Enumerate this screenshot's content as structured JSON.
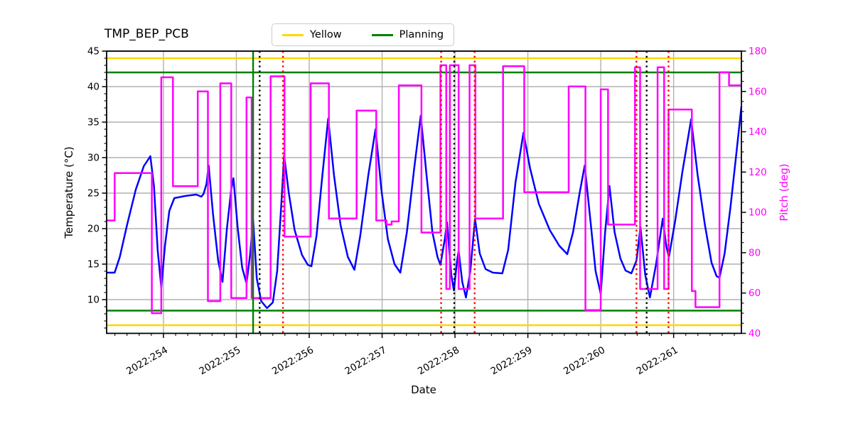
{
  "title": "TMP_BEP_PCB",
  "legend": [
    {
      "label": "Yellow",
      "color": "#ffd700"
    },
    {
      "label": "Planning",
      "color": "#008000"
    }
  ],
  "colors": {
    "temperature_line": "#0000ff",
    "pitch_line": "#ff00ff",
    "grid": "#b0b0b0",
    "spine": "#000000",
    "yellow_limit": "#ffd700",
    "planning_limit": "#008000",
    "right_axis_text": "#ff00ff"
  },
  "chart_data": {
    "type": "line",
    "title": "TMP_BEP_PCB",
    "x_axis": {
      "label": "Date",
      "lim": [
        253.22,
        261.93
      ],
      "major_ticks": [
        254,
        255,
        256,
        257,
        258,
        259,
        260,
        261
      ],
      "tick_labels": [
        "2022:254",
        "2022:255",
        "2022:256",
        "2022:257",
        "2022:258",
        "2022:259",
        "2022:260",
        "2022:261"
      ],
      "minor_divisions_per_day": 6
    },
    "y_left": {
      "label": "Temperature (°C)",
      "lim": [
        5.25,
        45
      ],
      "ticks": [
        10,
        15,
        20,
        25,
        30,
        35,
        40,
        45
      ],
      "minor_step": 1,
      "grid": true
    },
    "y_right": {
      "label": "Pitch (deg)",
      "lim": [
        40,
        180
      ],
      "ticks": [
        40,
        60,
        80,
        100,
        120,
        140,
        160,
        180
      ],
      "minor_step": 5,
      "color": "#ff00ff"
    },
    "limit_lines": [
      {
        "name": "Yellow",
        "color": "#ffd700",
        "axis": "left",
        "values": [
          44,
          6.4
        ]
      },
      {
        "name": "Planning",
        "color": "#008000",
        "axis": "left",
        "values": [
          42,
          8.45
        ]
      }
    ],
    "event_lines": [
      {
        "day": 255.23,
        "color": "#008000",
        "style": "solid"
      },
      {
        "day": 255.32,
        "color": "#000000",
        "style": "dotted"
      },
      {
        "day": 255.64,
        "color": "#ff0000",
        "style": "dotted"
      },
      {
        "day": 257.81,
        "color": "#ff0000",
        "style": "dotted"
      },
      {
        "day": 257.99,
        "color": "#000000",
        "style": "dotted"
      },
      {
        "day": 258.27,
        "color": "#ff0000",
        "style": "dotted"
      },
      {
        "day": 260.49,
        "color": "#ff0000",
        "style": "dotted"
      },
      {
        "day": 260.63,
        "color": "#000000",
        "style": "dotted"
      },
      {
        "day": 260.93,
        "color": "#ff0000",
        "style": "dotted"
      }
    ],
    "series": [
      {
        "name": "Temperature",
        "axis": "left",
        "draw": "line",
        "color": "#0000ff",
        "points": [
          [
            253.22,
            13.8
          ],
          [
            253.33,
            13.8
          ],
          [
            253.4,
            16.0
          ],
          [
            253.5,
            20.5
          ],
          [
            253.62,
            25.5
          ],
          [
            253.73,
            28.8
          ],
          [
            253.82,
            30.2
          ],
          [
            253.87,
            26.0
          ],
          [
            253.92,
            17.0
          ],
          [
            253.97,
            11.7
          ],
          [
            254.02,
            17.5
          ],
          [
            254.08,
            22.5
          ],
          [
            254.15,
            24.3
          ],
          [
            254.3,
            24.6
          ],
          [
            254.45,
            24.8
          ],
          [
            254.52,
            24.5
          ],
          [
            254.55,
            24.9
          ],
          [
            254.59,
            26.3
          ],
          [
            254.62,
            28.9
          ],
          [
            254.68,
            22.0
          ],
          [
            254.75,
            15.5
          ],
          [
            254.81,
            12.5
          ],
          [
            254.87,
            20.0
          ],
          [
            254.93,
            25.5
          ],
          [
            254.96,
            27.1
          ],
          [
            255.02,
            20.0
          ],
          [
            255.08,
            14.5
          ],
          [
            255.14,
            12.3
          ],
          [
            255.19,
            16.5
          ],
          [
            255.23,
            21.2
          ],
          [
            255.28,
            13.0
          ],
          [
            255.34,
            9.8
          ],
          [
            255.42,
            8.8
          ],
          [
            255.5,
            9.6
          ],
          [
            255.56,
            14.0
          ],
          [
            255.62,
            24.0
          ],
          [
            255.655,
            30.3
          ],
          [
            255.72,
            25.0
          ],
          [
            255.8,
            19.8
          ],
          [
            255.9,
            16.3
          ],
          [
            255.98,
            14.9
          ],
          [
            256.03,
            14.7
          ],
          [
            256.1,
            19.0
          ],
          [
            256.18,
            27.5
          ],
          [
            256.26,
            35.5
          ],
          [
            256.34,
            27.5
          ],
          [
            256.43,
            20.5
          ],
          [
            256.53,
            16.0
          ],
          [
            256.62,
            14.2
          ],
          [
            256.7,
            19.0
          ],
          [
            256.81,
            27.5
          ],
          [
            256.91,
            34.0
          ],
          [
            256.99,
            25.5
          ],
          [
            257.08,
            18.5
          ],
          [
            257.17,
            15.0
          ],
          [
            257.25,
            13.8
          ],
          [
            257.34,
            19.5
          ],
          [
            257.44,
            28.5
          ],
          [
            257.53,
            35.9
          ],
          [
            257.61,
            27.5
          ],
          [
            257.69,
            19.5
          ],
          [
            257.76,
            16.0
          ],
          [
            257.8,
            14.9
          ],
          [
            257.86,
            18.5
          ],
          [
            257.89,
            20.9
          ],
          [
            257.95,
            13.5
          ],
          [
            257.985,
            11.3
          ],
          [
            258.03,
            15.5
          ],
          [
            258.05,
            16.9
          ],
          [
            258.1,
            12.5
          ],
          [
            258.15,
            10.3
          ],
          [
            258.21,
            14.0
          ],
          [
            258.275,
            21.4
          ],
          [
            258.34,
            16.5
          ],
          [
            258.42,
            14.3
          ],
          [
            258.52,
            13.8
          ],
          [
            258.65,
            13.7
          ],
          [
            258.73,
            17.0
          ],
          [
            258.83,
            26.5
          ],
          [
            258.94,
            33.5
          ],
          [
            259.03,
            28.5
          ],
          [
            259.15,
            23.5
          ],
          [
            259.3,
            19.8
          ],
          [
            259.43,
            17.6
          ],
          [
            259.54,
            16.4
          ],
          [
            259.62,
            19.5
          ],
          [
            259.71,
            25.0
          ],
          [
            259.78,
            28.9
          ],
          [
            259.85,
            22.0
          ],
          [
            259.93,
            14.0
          ],
          [
            260.0,
            10.8
          ],
          [
            260.06,
            19.5
          ],
          [
            260.12,
            26.0
          ],
          [
            260.19,
            19.5
          ],
          [
            260.27,
            15.8
          ],
          [
            260.34,
            14.1
          ],
          [
            260.42,
            13.7
          ],
          [
            260.49,
            15.5
          ],
          [
            260.545,
            20.2
          ],
          [
            260.61,
            13.5
          ],
          [
            260.675,
            10.3
          ],
          [
            260.76,
            15.0
          ],
          [
            260.85,
            21.4
          ],
          [
            260.9,
            17.5
          ],
          [
            260.935,
            16.0
          ],
          [
            261.02,
            21.0
          ],
          [
            261.12,
            28.0
          ],
          [
            261.24,
            35.4
          ],
          [
            261.33,
            27.5
          ],
          [
            261.43,
            20.5
          ],
          [
            261.52,
            15.2
          ],
          [
            261.59,
            13.3
          ],
          [
            261.63,
            13.1
          ],
          [
            261.7,
            16.5
          ],
          [
            261.78,
            23.0
          ],
          [
            261.86,
            30.5
          ],
          [
            261.93,
            37.2
          ]
        ]
      },
      {
        "name": "Pitch",
        "axis": "right",
        "draw": "step",
        "color": "#ff00ff",
        "points": [
          [
            253.22,
            96
          ],
          [
            253.33,
            119.5
          ],
          [
            253.84,
            50
          ],
          [
            253.97,
            167
          ],
          [
            254.13,
            113
          ],
          [
            254.47,
            160
          ],
          [
            254.61,
            56
          ],
          [
            254.78,
            164
          ],
          [
            254.93,
            57.5
          ],
          [
            255.14,
            157
          ],
          [
            255.21,
            57.5
          ],
          [
            255.47,
            167.5
          ],
          [
            255.66,
            88
          ],
          [
            256.02,
            164
          ],
          [
            256.27,
            97
          ],
          [
            256.65,
            150.5
          ],
          [
            256.92,
            96
          ],
          [
            257.06,
            94
          ],
          [
            257.13,
            95.5
          ],
          [
            257.23,
            163
          ],
          [
            257.54,
            90
          ],
          [
            257.8,
            173
          ],
          [
            257.88,
            62
          ],
          [
            257.93,
            173
          ],
          [
            258.05,
            62
          ],
          [
            258.2,
            173
          ],
          [
            258.28,
            97
          ],
          [
            258.66,
            172.5
          ],
          [
            258.95,
            110
          ],
          [
            259.56,
            162.5
          ],
          [
            259.79,
            51.5
          ],
          [
            260.0,
            161
          ],
          [
            260.1,
            94
          ],
          [
            260.47,
            172
          ],
          [
            260.54,
            62
          ],
          [
            260.78,
            172
          ],
          [
            260.87,
            62
          ],
          [
            260.93,
            151
          ],
          [
            261.25,
            61
          ],
          [
            261.3,
            53
          ],
          [
            261.63,
            169.5
          ],
          [
            261.76,
            163
          ]
        ]
      }
    ]
  }
}
